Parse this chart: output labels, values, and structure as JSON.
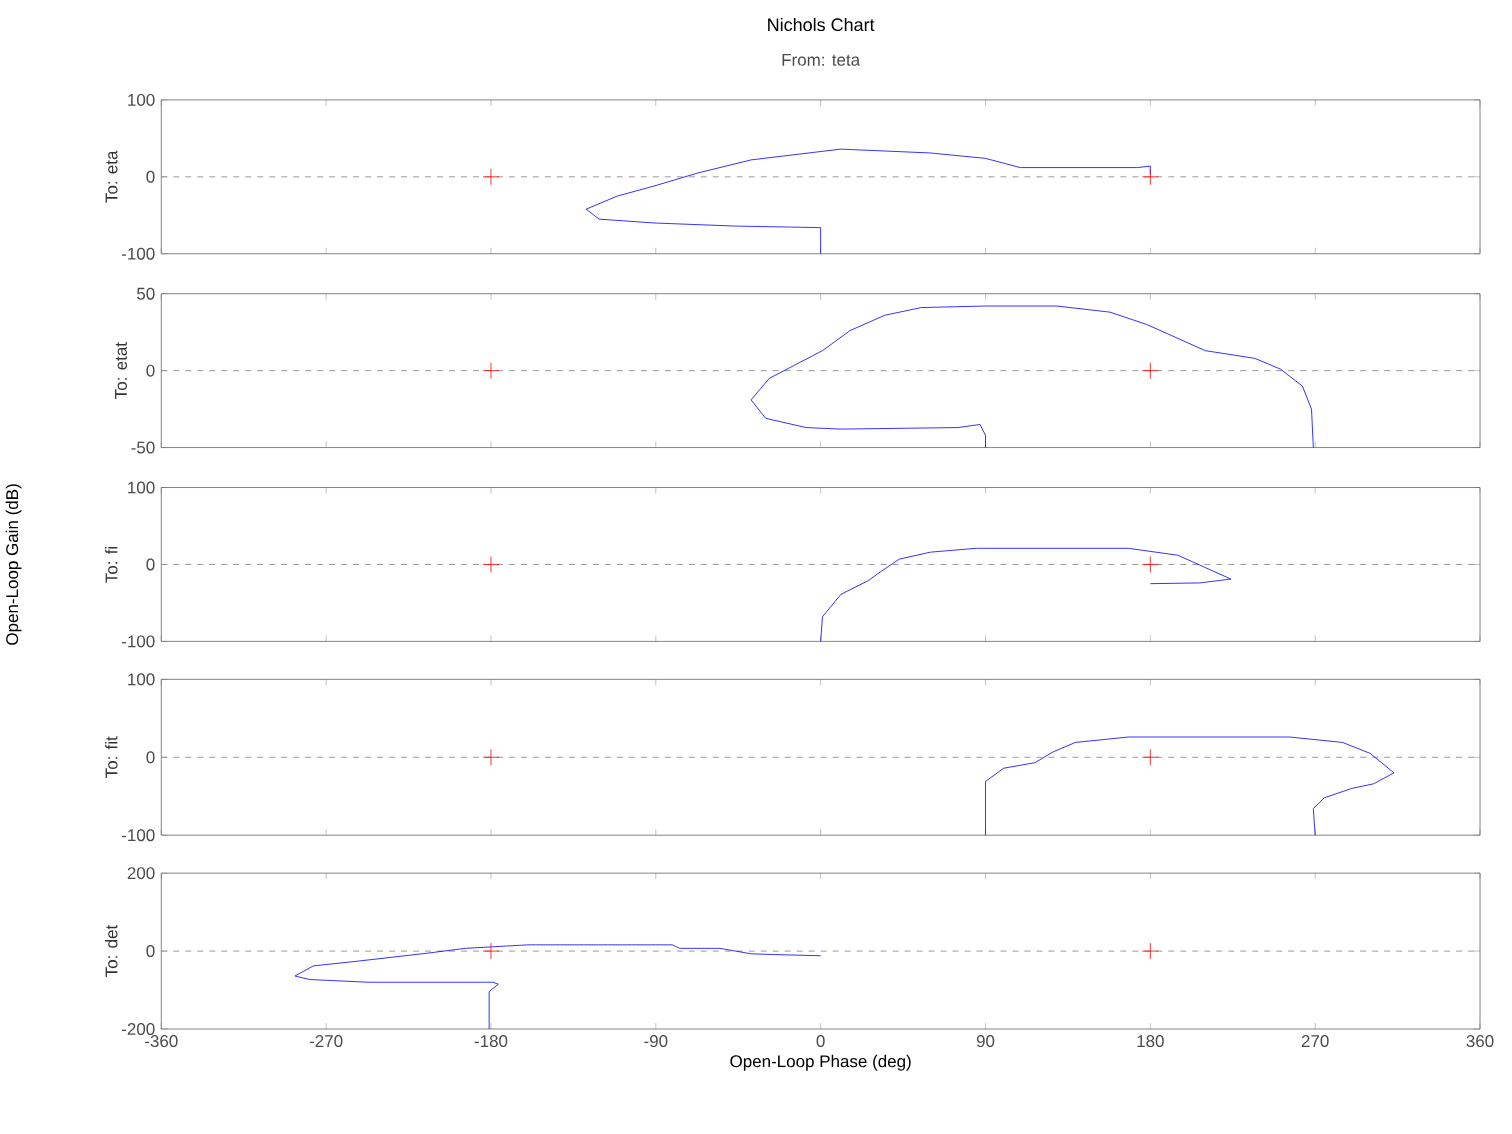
{
  "chart_data": [
    {
      "type": "line",
      "title": "Nichols Chart",
      "subtitle": "From: teta",
      "ylabel": "To: eta",
      "xlim": [
        -360,
        360
      ],
      "xticks": [
        -360,
        -270,
        -180,
        -90,
        0,
        90,
        180,
        270,
        360
      ],
      "ylim": [
        -100,
        100
      ],
      "yticks": [
        -100,
        0,
        100
      ],
      "tick_labels": "y",
      "ref_lines": [
        {
          "axis": "y",
          "value": 0,
          "color": "#808080",
          "line_style": "dashed"
        }
      ],
      "series": [
        {
          "color": "#0000ff",
          "x": [
            0,
            0,
            -1,
            -47,
            -91,
            -121,
            -128,
            -111,
            -91,
            -67,
            -38,
            11,
            60,
            90,
            109,
            173,
            180,
            180
          ],
          "values": [
            -100,
            -66,
            -66,
            -64,
            -60,
            -55,
            -42,
            -25,
            -12,
            5,
            22,
            36,
            31,
            24,
            12,
            12,
            14,
            3
          ]
        },
        {
          "type": "scatter",
          "marker": "cross",
          "color": "#ff0000",
          "x": [
            -180,
            180
          ],
          "values": [
            0,
            0
          ]
        }
      ]
    },
    {
      "type": "line",
      "ylabel": "To: etat",
      "xlim": [
        -360,
        360
      ],
      "xticks": [
        -360,
        -270,
        -180,
        -90,
        0,
        90,
        180,
        270,
        360
      ],
      "ylim": [
        -50,
        50
      ],
      "yticks": [
        -50,
        0,
        50
      ],
      "tick_labels": "y",
      "ref_lines": [
        {
          "axis": "y",
          "value": 0,
          "color": "#808080",
          "line_style": "dashed"
        }
      ],
      "series": [
        {
          "color": "#0000ff",
          "x": [
            90,
            90,
            87,
            75,
            11,
            -8,
            -30,
            -38,
            -28,
            1,
            16,
            35,
            55,
            90,
            129,
            158,
            178,
            210,
            237,
            251,
            263,
            268,
            269
          ],
          "values": [
            -50,
            -42,
            -35,
            -37,
            -38,
            -37,
            -31,
            -19,
            -5,
            13,
            26,
            36,
            41,
            42,
            42,
            38,
            30,
            13,
            8,
            1,
            -10,
            -25,
            -50
          ]
        },
        {
          "type": "scatter",
          "marker": "cross",
          "color": "#ff0000",
          "x": [
            -180,
            180
          ],
          "values": [
            0,
            0
          ]
        }
      ]
    },
    {
      "type": "line",
      "ylabel": "To: fi",
      "annotations": [
        "Open-Loop Gain (dB)"
      ],
      "xlim": [
        -360,
        360
      ],
      "xticks": [
        -360,
        -270,
        -180,
        -90,
        0,
        90,
        180,
        270,
        360
      ],
      "ylim": [
        -100,
        100
      ],
      "yticks": [
        -100,
        0,
        100
      ],
      "tick_labels": "y",
      "ref_lines": [
        {
          "axis": "y",
          "value": 0,
          "color": "#808080",
          "line_style": "dashed"
        }
      ],
      "series": [
        {
          "color": "#0000ff",
          "x": [
            0,
            1,
            11,
            26,
            33,
            43,
            60,
            85,
            168,
            195,
            210,
            224,
            207,
            180
          ],
          "values": [
            -100,
            -68,
            -39,
            -21,
            -9,
            7,
            16,
            21,
            21,
            12,
            -4,
            -19,
            -24,
            -25
          ]
        },
        {
          "type": "scatter",
          "marker": "cross",
          "color": "#ff0000",
          "x": [
            -180,
            180
          ],
          "values": [
            0,
            0
          ]
        }
      ]
    },
    {
      "type": "line",
      "ylabel": "To: fit",
      "xlim": [
        -360,
        360
      ],
      "xticks": [
        -360,
        -270,
        -180,
        -90,
        0,
        90,
        180,
        270,
        360
      ],
      "ylim": [
        -100,
        100
      ],
      "yticks": [
        -100,
        0,
        100
      ],
      "tick_labels": "y",
      "ref_lines": [
        {
          "axis": "y",
          "value": 0,
          "color": "#808080",
          "line_style": "dashed"
        }
      ],
      "series": [
        {
          "color": "#0000ff",
          "x": [
            90,
            90,
            100,
            117,
            127,
            139,
            168,
            256,
            285,
            300,
            313,
            302,
            290,
            275,
            269,
            270
          ],
          "values": [
            -100,
            -31,
            -14,
            -7,
            7,
            19,
            26,
            26,
            19,
            5,
            -20,
            -34,
            -40,
            -52,
            -66,
            -100
          ]
        },
        {
          "type": "scatter",
          "marker": "cross",
          "color": "#ff0000",
          "x": [
            -180,
            180
          ],
          "values": [
            0,
            0
          ]
        }
      ]
    },
    {
      "type": "line",
      "ylabel": "To: det",
      "xlabel": "Open-Loop Phase (deg)",
      "xlim": [
        -360,
        360
      ],
      "xticks": [
        -360,
        -270,
        -180,
        -90,
        0,
        90,
        180,
        270,
        360
      ],
      "ylim": [
        -200,
        200
      ],
      "yticks": [
        -200,
        0,
        200
      ],
      "ref_lines": [
        {
          "axis": "y",
          "value": 0,
          "color": "#808080",
          "line_style": "dashed"
        }
      ],
      "series": [
        {
          "color": "#0000ff",
          "x": [
            -181,
            -181,
            -176,
            -179,
            -247,
            -279,
            -287,
            -277,
            -253,
            -214,
            -194,
            -160,
            -81,
            -77,
            -55,
            -38,
            -25,
            0
          ],
          "values": [
            -200,
            -104,
            -85,
            -80,
            -80,
            -73,
            -64,
            -38,
            -26,
            -5,
            7,
            16,
            16,
            7,
            7,
            -7,
            -9,
            -12
          ]
        },
        {
          "type": "scatter",
          "marker": "cross",
          "color": "#ff0000",
          "x": [
            -180,
            180
          ],
          "values": [
            0,
            0
          ]
        }
      ]
    }
  ]
}
